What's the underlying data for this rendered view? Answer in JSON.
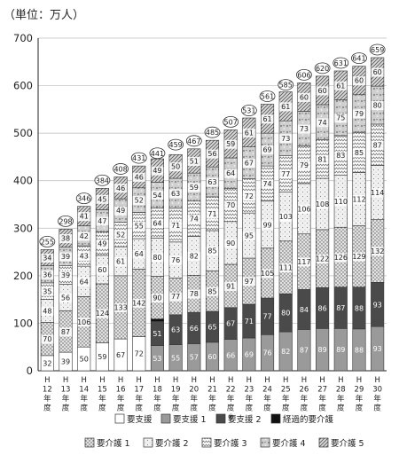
{
  "unit_label": "（単位：万人）",
  "chart_data": {
    "type": "bar",
    "stacked": true,
    "ylim": [
      0,
      700
    ],
    "yticks": [
      0,
      100,
      200,
      300,
      400,
      500,
      600,
      700
    ],
    "grid": true,
    "categories": [
      [
        "H",
        "12",
        "年",
        "度"
      ],
      [
        "H",
        "13",
        "年",
        "度"
      ],
      [
        "H",
        "14",
        "年",
        "度"
      ],
      [
        "H",
        "15",
        "年",
        "度"
      ],
      [
        "H",
        "16",
        "年",
        "度"
      ],
      [
        "H",
        "17",
        "年",
        "度"
      ],
      [
        "H",
        "18",
        "年",
        "度"
      ],
      [
        "H",
        "19",
        "年",
        "度"
      ],
      [
        "H",
        "20",
        "年",
        "度"
      ],
      [
        "H",
        "21",
        "年",
        "度"
      ],
      [
        "H",
        "22",
        "年",
        "度",
        "※"
      ],
      [
        "H",
        "23",
        "年",
        "度"
      ],
      [
        "H",
        "24",
        "年",
        "度"
      ],
      [
        "H",
        "25",
        "年",
        "度"
      ],
      [
        "H",
        "26",
        "年",
        "度"
      ],
      [
        "H",
        "27",
        "年",
        "度"
      ],
      [
        "H",
        "28",
        "年",
        "度"
      ],
      [
        "H",
        "29",
        "年",
        "度"
      ],
      [
        "H",
        "30",
        "年",
        "度"
      ]
    ],
    "series": [
      {
        "name": "要支援",
        "values": [
          32,
          39,
          50,
          59,
          67,
          72,
          null,
          null,
          null,
          null,
          null,
          null,
          null,
          null,
          null,
          null,
          null,
          null,
          null
        ]
      },
      {
        "name": "要支援 1",
        "values": [
          null,
          null,
          null,
          null,
          null,
          null,
          53,
          55,
          57,
          60,
          66,
          69,
          76,
          82,
          87,
          89,
          89,
          88,
          93
        ]
      },
      {
        "name": "要支援 2",
        "values": [
          null,
          null,
          null,
          null,
          null,
          null,
          51,
          63,
          66,
          65,
          67,
          71,
          77,
          80,
          84,
          86,
          87,
          88,
          93
        ]
      },
      {
        "name": "経過的要介護",
        "values": [
          null,
          null,
          null,
          null,
          null,
          null,
          5,
          null,
          null,
          null,
          null,
          null,
          null,
          null,
          null,
          null,
          null,
          null,
          null
        ]
      },
      {
        "name": "要介護 1",
        "values": [
          70,
          87,
          106,
          124,
          133,
          142,
          90,
          77,
          78,
          85,
          91,
          97,
          105,
          111,
          117,
          122,
          126,
          129,
          132
        ]
      },
      {
        "name": "要介護 2",
        "values": [
          48,
          56,
          64,
          60,
          61,
          64,
          80,
          76,
          82,
          85,
          90,
          95,
          99,
          103,
          106,
          108,
          110,
          112,
          114
        ]
      },
      {
        "name": "要介護 3",
        "values": [
          35,
          39,
          43,
          49,
          52,
          55,
          64,
          71,
          74,
          71,
          70,
          72,
          74,
          77,
          79,
          81,
          83,
          85,
          87
        ]
      },
      {
        "name": "要介護 4",
        "values": [
          36,
          39,
          42,
          47,
          49,
          52,
          54,
          63,
          59,
          63,
          64,
          67,
          69,
          73,
          73,
          74,
          75,
          79,
          80
        ]
      },
      {
        "name": "要介護 5",
        "values": [
          34,
          38,
          41,
          45,
          46,
          46,
          49,
          50,
          51,
          56,
          59,
          61,
          61,
          61,
          60,
          60,
          61,
          60,
          60
        ]
      }
    ],
    "totals": [
      255,
      298,
      346,
      384,
      408,
      431,
      441,
      459,
      467,
      485,
      507,
      531,
      561,
      585,
      606,
      620,
      631,
      641,
      659
    ]
  }
}
